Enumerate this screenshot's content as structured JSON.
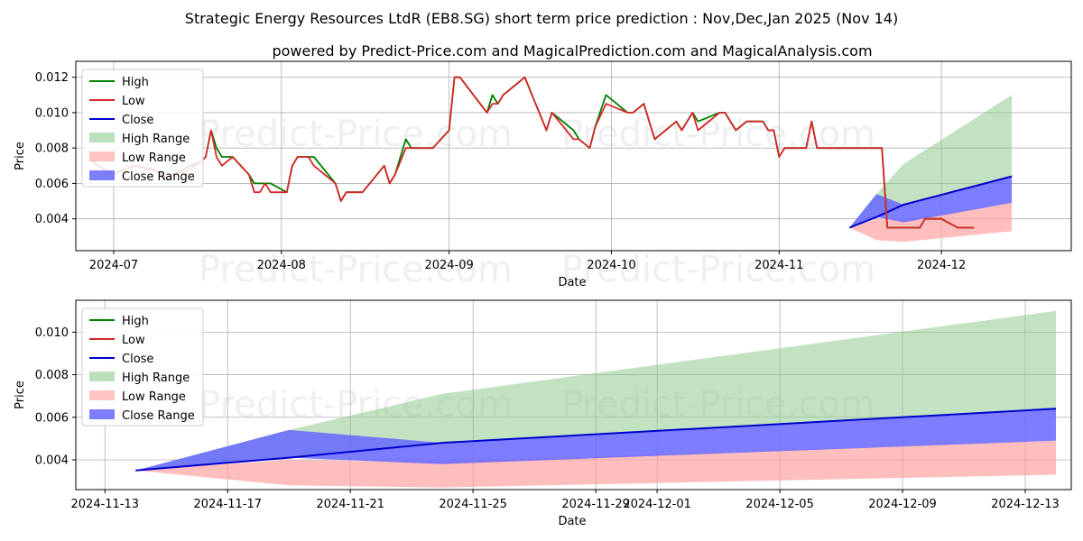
{
  "title": "Strategic Energy Resources LtdR (EB8.SG) short term price prediction : Nov,Dec,Jan 2025 (Nov 14)",
  "subtitle": "powered by Predict-Price.com and MagicalPrediction.com and MagicalAnalysis.com",
  "watermark": "Predict-Price.com",
  "colors": {
    "high": "#008000",
    "low": "#d62728",
    "close": "#0000cc",
    "high_range": "#8fca8f",
    "low_range": "#ff9b9b",
    "close_range": "#6666ff"
  },
  "legend": [
    "High",
    "Low",
    "Close",
    "High Range",
    "Low Range",
    "Close Range"
  ],
  "chart_data": [
    {
      "type": "line",
      "xlabel": "Date",
      "ylabel": "Price",
      "xlim": [
        "2024-06-24",
        "2024-12-25"
      ],
      "ylim": [
        0.0022,
        0.0129
      ],
      "x_ticks": [
        "2024-07-01",
        "2024-08-01",
        "2024-09-01",
        "2024-10-01",
        "2024-11-01",
        "2024-12-01"
      ],
      "x_tick_labels": [
        "2024-07",
        "2024-08",
        "2024-09",
        "2024-10",
        "2024-11",
        "2024-12"
      ],
      "y_ticks": [
        0.004,
        0.006,
        0.008,
        0.01,
        0.012
      ],
      "y_tick_labels": [
        "0.004",
        "0.006",
        "0.008",
        "0.010",
        "0.012"
      ],
      "legend_position": "top-left",
      "series": [
        {
          "name": "High",
          "points": [
            [
              "2024-06-27",
              0.0073
            ],
            [
              "2024-06-28",
              0.007
            ],
            [
              "2024-07-01",
              0.0065
            ],
            [
              "2024-07-03",
              0.0068
            ],
            [
              "2024-07-05",
              0.007
            ],
            [
              "2024-07-08",
              0.0068
            ],
            [
              "2024-07-10",
              0.0065
            ],
            [
              "2024-07-11",
              0.0062
            ],
            [
              "2024-07-12",
              0.0065
            ],
            [
              "2024-07-15",
              0.007
            ],
            [
              "2024-07-17",
              0.0072
            ],
            [
              "2024-07-18",
              0.0075
            ],
            [
              "2024-07-19",
              0.009
            ],
            [
              "2024-07-20",
              0.008
            ],
            [
              "2024-07-21",
              0.0075
            ],
            [
              "2024-07-23",
              0.0075
            ],
            [
              "2024-07-26",
              0.0065
            ],
            [
              "2024-07-27",
              0.006
            ],
            [
              "2024-07-29",
              0.006
            ],
            [
              "2024-07-30",
              0.006
            ],
            [
              "2024-08-02",
              0.0055
            ],
            [
              "2024-08-03",
              0.007
            ],
            [
              "2024-08-04",
              0.0075
            ],
            [
              "2024-08-06",
              0.0075
            ],
            [
              "2024-08-07",
              0.0075
            ],
            [
              "2024-08-11",
              0.006
            ],
            [
              "2024-08-12",
              0.005
            ],
            [
              "2024-08-13",
              0.0055
            ],
            [
              "2024-08-16",
              0.0055
            ],
            [
              "2024-08-20",
              0.007
            ],
            [
              "2024-08-21",
              0.006
            ],
            [
              "2024-08-22",
              0.0065
            ],
            [
              "2024-08-24",
              0.0085
            ],
            [
              "2024-08-25",
              0.008
            ],
            [
              "2024-08-29",
              0.008
            ],
            [
              "2024-09-01",
              0.009
            ],
            [
              "2024-09-02",
              0.012
            ],
            [
              "2024-09-03",
              0.012
            ],
            [
              "2024-09-08",
              0.01
            ],
            [
              "2024-09-09",
              0.011
            ],
            [
              "2024-09-10",
              0.0105
            ],
            [
              "2024-09-11",
              0.011
            ],
            [
              "2024-09-13",
              0.0115
            ],
            [
              "2024-09-15",
              0.012
            ],
            [
              "2024-09-19",
              0.009
            ],
            [
              "2024-09-20",
              0.01
            ],
            [
              "2024-09-24",
              0.009
            ],
            [
              "2024-09-25",
              0.0085
            ],
            [
              "2024-09-27",
              0.008
            ],
            [
              "2024-09-28",
              0.0092
            ],
            [
              "2024-09-30",
              0.011
            ],
            [
              "2024-10-04",
              0.01
            ],
            [
              "2024-10-05",
              0.01
            ],
            [
              "2024-10-07",
              0.0105
            ],
            [
              "2024-10-09",
              0.0085
            ],
            [
              "2024-10-13",
              0.0095
            ],
            [
              "2024-10-14",
              0.009
            ],
            [
              "2024-10-16",
              0.01
            ],
            [
              "2024-10-17",
              0.0095
            ],
            [
              "2024-10-21",
              0.01
            ],
            [
              "2024-10-22",
              0.01
            ],
            [
              "2024-10-24",
              0.009
            ],
            [
              "2024-10-26",
              0.0095
            ],
            [
              "2024-10-28",
              0.0095
            ],
            [
              "2024-10-29",
              0.0095
            ],
            [
              "2024-10-30",
              0.009
            ],
            [
              "2024-10-31",
              0.009
            ],
            [
              "2024-11-01",
              0.0075
            ],
            [
              "2024-11-02",
              0.008
            ],
            [
              "2024-11-06",
              0.008
            ],
            [
              "2024-11-07",
              0.0095
            ],
            [
              "2024-11-08",
              0.008
            ],
            [
              "2024-11-20",
              0.008
            ],
            [
              "2024-11-21",
              0.0035
            ],
            [
              "2024-11-27",
              0.0035
            ],
            [
              "2024-11-28",
              0.004
            ],
            [
              "2024-12-01",
              0.004
            ],
            [
              "2024-12-04",
              0.0035
            ],
            [
              "2024-12-07",
              0.0035
            ]
          ]
        },
        {
          "name": "Low",
          "points": [
            [
              "2024-06-27",
              0.0073
            ],
            [
              "2024-06-28",
              0.007
            ],
            [
              "2024-07-01",
              0.0065
            ],
            [
              "2024-07-03",
              0.0068
            ],
            [
              "2024-07-05",
              0.007
            ],
            [
              "2024-07-08",
              0.0068
            ],
            [
              "2024-07-10",
              0.0065
            ],
            [
              "2024-07-11",
              0.0062
            ],
            [
              "2024-07-12",
              0.0065
            ],
            [
              "2024-07-15",
              0.0068
            ],
            [
              "2024-07-17",
              0.0072
            ],
            [
              "2024-07-18",
              0.0075
            ],
            [
              "2024-07-19",
              0.009
            ],
            [
              "2024-07-20",
              0.0075
            ],
            [
              "2024-07-21",
              0.007
            ],
            [
              "2024-07-23",
              0.0075
            ],
            [
              "2024-07-26",
              0.0065
            ],
            [
              "2024-07-27",
              0.0055
            ],
            [
              "2024-07-28",
              0.0055
            ],
            [
              "2024-07-29",
              0.006
            ],
            [
              "2024-07-30",
              0.0055
            ],
            [
              "2024-08-02",
              0.0055
            ],
            [
              "2024-08-03",
              0.007
            ],
            [
              "2024-08-04",
              0.0075
            ],
            [
              "2024-08-06",
              0.0075
            ],
            [
              "2024-08-07",
              0.007
            ],
            [
              "2024-08-11",
              0.006
            ],
            [
              "2024-08-12",
              0.005
            ],
            [
              "2024-08-13",
              0.0055
            ],
            [
              "2024-08-16",
              0.0055
            ],
            [
              "2024-08-20",
              0.007
            ],
            [
              "2024-08-21",
              0.006
            ],
            [
              "2024-08-22",
              0.0065
            ],
            [
              "2024-08-24",
              0.008
            ],
            [
              "2024-08-25",
              0.008
            ],
            [
              "2024-08-29",
              0.008
            ],
            [
              "2024-09-01",
              0.009
            ],
            [
              "2024-09-02",
              0.012
            ],
            [
              "2024-09-03",
              0.012
            ],
            [
              "2024-09-08",
              0.01
            ],
            [
              "2024-09-09",
              0.0105
            ],
            [
              "2024-09-10",
              0.0105
            ],
            [
              "2024-09-11",
              0.011
            ],
            [
              "2024-09-13",
              0.0115
            ],
            [
              "2024-09-15",
              0.012
            ],
            [
              "2024-09-19",
              0.009
            ],
            [
              "2024-09-20",
              0.01
            ],
            [
              "2024-09-24",
              0.0085
            ],
            [
              "2024-09-25",
              0.0085
            ],
            [
              "2024-09-27",
              0.008
            ],
            [
              "2024-09-28",
              0.0092
            ],
            [
              "2024-09-30",
              0.0105
            ],
            [
              "2024-10-04",
              0.01
            ],
            [
              "2024-10-05",
              0.01
            ],
            [
              "2024-10-07",
              0.0105
            ],
            [
              "2024-10-09",
              0.0085
            ],
            [
              "2024-10-13",
              0.0095
            ],
            [
              "2024-10-14",
              0.009
            ],
            [
              "2024-10-16",
              0.01
            ],
            [
              "2024-10-17",
              0.009
            ],
            [
              "2024-10-21",
              0.01
            ],
            [
              "2024-10-22",
              0.01
            ],
            [
              "2024-10-24",
              0.009
            ],
            [
              "2024-10-26",
              0.0095
            ],
            [
              "2024-10-28",
              0.0095
            ],
            [
              "2024-10-29",
              0.0095
            ],
            [
              "2024-10-30",
              0.009
            ],
            [
              "2024-10-31",
              0.009
            ],
            [
              "2024-11-01",
              0.0075
            ],
            [
              "2024-11-02",
              0.008
            ],
            [
              "2024-11-06",
              0.008
            ],
            [
              "2024-11-07",
              0.0095
            ],
            [
              "2024-11-08",
              0.008
            ],
            [
              "2024-11-20",
              0.008
            ],
            [
              "2024-11-21",
              0.0035
            ],
            [
              "2024-11-27",
              0.0035
            ],
            [
              "2024-11-28",
              0.004
            ],
            [
              "2024-12-01",
              0.004
            ],
            [
              "2024-12-04",
              0.0035
            ],
            [
              "2024-12-07",
              0.0035
            ]
          ]
        }
      ]
    },
    {
      "type": "area",
      "xlabel": "Date",
      "ylabel": "Price",
      "xlim": [
        "2024-11-12.05",
        "2024-12-14.5"
      ],
      "ylim": [
        0.0026,
        0.0115
      ],
      "x_ticks": [
        "2024-11-13",
        "2024-11-17",
        "2024-11-21",
        "2024-11-25",
        "2024-11-29",
        "2024-12-01",
        "2024-12-05",
        "2024-12-09",
        "2024-12-13"
      ],
      "x_tick_labels": [
        "2024-11-13",
        "2024-11-17",
        "2024-11-21",
        "2024-11-25",
        "2024-11-29",
        "2024-12-01",
        "2024-12-05",
        "2024-12-09",
        "2024-12-13"
      ],
      "y_ticks": [
        0.004,
        0.006,
        0.008,
        0.01
      ],
      "y_tick_labels": [
        "0.004",
        "0.006",
        "0.008",
        "0.010"
      ],
      "legend_position": "top-left",
      "forecast": {
        "dates": [
          "2024-11-14",
          "2024-11-19",
          "2024-11-24",
          "2024-12-14"
        ],
        "close": [
          0.0035,
          0.0041,
          0.0048,
          0.0064
        ],
        "high_range_upper": [
          0.0035,
          0.0054,
          0.0071,
          0.011
        ],
        "low_range_lower": [
          0.0035,
          0.0028,
          0.0027,
          0.0033
        ],
        "low_range_upper": [
          0.0035,
          0.004,
          0.0039,
          0.0049
        ],
        "close_range_upper": [
          0.0035,
          0.0054,
          0.0048,
          0.0064
        ],
        "close_range_lower": [
          0.0035,
          0.0041,
          0.0038,
          0.0049
        ]
      }
    }
  ]
}
